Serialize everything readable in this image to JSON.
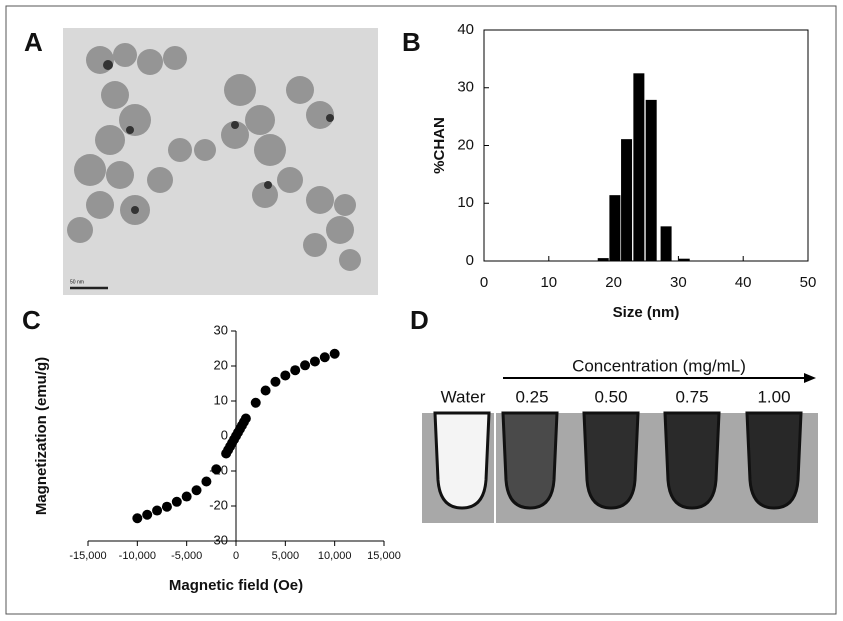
{
  "panel_labels": [
    "A",
    "B",
    "C",
    "D"
  ],
  "tem": {
    "scale_bar": "50 nm"
  },
  "chart_data": [
    {
      "type": "bar",
      "x_label": "Size (nm)",
      "y_label": "%CHAN",
      "x": [
        18.4,
        20.2,
        22.0,
        23.9,
        25.8,
        28.1,
        30.9
      ],
      "values": [
        0.5,
        11.4,
        21.1,
        32.5,
        27.9,
        6,
        0.4
      ],
      "color": "#000000",
      "xlim": [
        0,
        50
      ],
      "xticks": [
        0,
        10,
        20,
        30,
        40,
        50
      ],
      "ylim": [
        0,
        40
      ],
      "yticks": [
        0,
        10,
        20,
        30,
        40
      ]
    },
    {
      "type": "scatter",
      "x_label": "Magnetic field (Oe)",
      "y_label": "Magnetization (emu/g)",
      "x": [
        -10000,
        -9000,
        -8000,
        -7000,
        -6000,
        -5000,
        -4000,
        -3000,
        -2000,
        -1000,
        -800,
        -600,
        -400,
        -200,
        0,
        200,
        400,
        600,
        800,
        1000,
        2000,
        3000,
        4000,
        5000,
        6000,
        7000,
        8000,
        9000,
        10000
      ],
      "values": [
        -23.5,
        -22.5,
        -21.3,
        -20.2,
        -18.8,
        -17.3,
        -15.5,
        -13,
        -9.5,
        -5,
        -4,
        -3,
        -2,
        -1,
        0,
        1,
        2,
        3,
        4,
        5,
        9.5,
        13,
        15.5,
        17.3,
        18.8,
        20.2,
        21.3,
        22.5,
        23.5
      ],
      "color": "#000000",
      "xlim": [
        -15000,
        15000
      ],
      "xticks": [
        {
          "value": -15000,
          "label": "-15,000"
        },
        {
          "value": -10000,
          "label": "-10,000"
        },
        {
          "value": -5000,
          "label": "-5,000"
        },
        0,
        {
          "value": 5000,
          "label": "5,000"
        },
        {
          "value": 10000,
          "label": "10,000"
        },
        {
          "value": 15000,
          "label": "15,000"
        }
      ],
      "ylim": [
        -30,
        30
      ],
      "yticks": [
        -30,
        -20,
        -10,
        0,
        10,
        20,
        30
      ]
    }
  ],
  "mri": {
    "axis_title": "Concentration (mg/mL)",
    "samples": [
      "Water",
      "0.25",
      "0.50",
      "0.75",
      "1.00"
    ]
  }
}
